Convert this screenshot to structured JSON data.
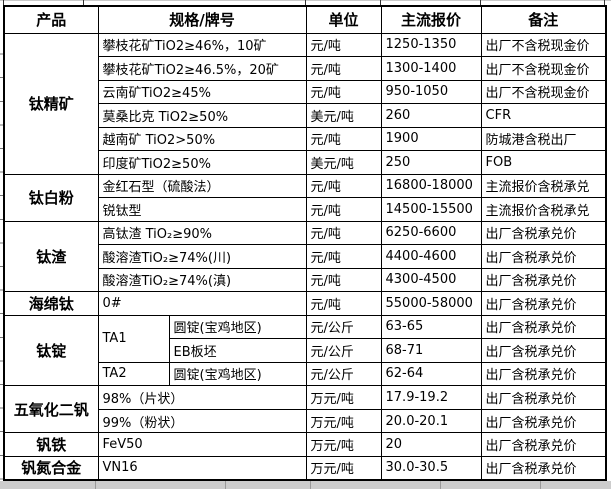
{
  "header": {
    "columns": [
      "产品",
      "规格/牌号",
      "单位",
      "主流报价",
      "备注"
    ]
  },
  "table": {
    "groups": [
      {
        "product": "钛精矿",
        "rows": [
          {
            "spec": "攀枝花矿TiO2≥46%，10矿",
            "unit": "元/吨",
            "price": "1250-1350",
            "note": "出厂不含税现金价"
          },
          {
            "spec": "攀枝花矿TiO2≥46.5%，20矿",
            "unit": "元/吨",
            "price": "1300-1400",
            "note": "出厂不含税现金价"
          },
          {
            "spec": "云南矿TiO2≥45%",
            "unit": "元/吨",
            "price": "950-1050",
            "note": "出厂不含税现金价"
          },
          {
            "spec": "莫桑比克 TiO2≥50%",
            "unit": "美元/吨",
            "price": "260",
            "note": "CFR"
          },
          {
            "spec": "越南矿 TiO2>50%",
            "unit": "元/吨",
            "price": "1900",
            "note": "防城港含税出厂"
          },
          {
            "spec": "印度矿TiO2≥50%",
            "unit": "美元/吨",
            "price": "250",
            "note": "FOB"
          }
        ]
      },
      {
        "product": "钛白粉",
        "rows": [
          {
            "spec": "金红石型（硫酸法）",
            "unit": "元/吨",
            "price": "16800-18000",
            "note": "主流报价含税承兑"
          },
          {
            "spec": "锐钛型",
            "unit": "元/吨",
            "price": "14500-15500",
            "note": "主流报价含税承兑"
          }
        ]
      },
      {
        "product": "钛渣",
        "rows": [
          {
            "spec": "高钛渣 TiO₂≥90%",
            "unit": "元/吨",
            "price": "6250-6600",
            "note": "出厂含税承兑价"
          },
          {
            "spec": "酸溶渣TiO₂≥74%(川)",
            "unit": "元/吨",
            "price": "4400-4600",
            "note": "出厂含税承兑价"
          },
          {
            "spec": "酸溶渣TiO₂≥74%(滇)",
            "unit": "元/吨",
            "price": "4300-4500",
            "note": "出厂含税承兑价"
          }
        ]
      },
      {
        "product": "海绵钛",
        "rows": [
          {
            "spec": "0#",
            "unit": "元/吨",
            "price": "55000-58000",
            "note": "出厂含税承兑价"
          }
        ]
      },
      {
        "product": "钛锭",
        "split_spec": true,
        "rows": [
          {
            "grade": "TA1",
            "grade_rowspan": 2,
            "spec": "圆锭(宝鸡地区)",
            "unit": "元/公斤",
            "price": "63-65",
            "note": "出厂含税承兑价"
          },
          {
            "spec": "EB板坯",
            "unit": "元/公斤",
            "price": "68-71",
            "note": "出厂含税承兑价"
          },
          {
            "grade": "TA2",
            "grade_rowspan": 1,
            "spec": "圆锭(宝鸡地区)",
            "unit": "元/公斤",
            "price": "62-64",
            "note": "出厂含税承兑价"
          }
        ]
      },
      {
        "product": "五氧化二钒",
        "rows": [
          {
            "spec": "98%（片状）",
            "unit": "万元/吨",
            "price": "17.9-19.2",
            "note": "出厂含税承兑价"
          },
          {
            "spec": "99%（粉状）",
            "unit": "万元/吨",
            "price": "20.0-20.1",
            "note": "出厂含税承兑价"
          }
        ]
      },
      {
        "product": "钒铁",
        "rows": [
          {
            "spec": "FeV50",
            "unit": "万元/吨",
            "price": "20",
            "note": "出厂含税承兑价"
          }
        ]
      },
      {
        "product": "钒氮合金",
        "rows": [
          {
            "spec": "VN16",
            "unit": "万元/吨",
            "price": "30.0-30.5",
            "note": "出厂含税承兑价"
          }
        ]
      }
    ]
  },
  "chart_data": {
    "type": "table",
    "title": "",
    "columns": [
      "产品",
      "规格/牌号",
      "单位",
      "主流报价",
      "备注"
    ],
    "rows": [
      [
        "钛精矿",
        "攀枝花矿TiO2≥46%，10矿",
        "元/吨",
        "1250-1350",
        "出厂不含税现金价"
      ],
      [
        "",
        "攀枝花矿TiO2≥46.5%，20矿",
        "元/吨",
        "1300-1400",
        "出厂不含税现金价"
      ],
      [
        "",
        "云南矿TiO2≥45%",
        "元/吨",
        "950-1050",
        "出厂不含税现金价"
      ],
      [
        "",
        "莫桑比克 TiO2≥50%",
        "美元/吨",
        "260",
        "CFR"
      ],
      [
        "",
        "越南矿 TiO2>50%",
        "元/吨",
        "1900",
        "防城港含税出厂"
      ],
      [
        "",
        "印度矿TiO2≥50%",
        "美元/吨",
        "250",
        "FOB"
      ],
      [
        "钛白粉",
        "金红石型（硫酸法）",
        "元/吨",
        "16800-18000",
        "主流报价含税承兑"
      ],
      [
        "",
        "锐钛型",
        "元/吨",
        "14500-15500",
        "主流报价含税承兑"
      ],
      [
        "钛渣",
        "高钛渣 TiO₂≥90%",
        "元/吨",
        "6250-6600",
        "出厂含税承兑价"
      ],
      [
        "",
        "酸溶渣TiO₂≥74%(川)",
        "元/吨",
        "4400-4600",
        "出厂含税承兑价"
      ],
      [
        "",
        "酸溶渣TiO₂≥74%(滇)",
        "元/吨",
        "4300-4500",
        "出厂含税承兑价"
      ],
      [
        "海绵钛",
        "0#",
        "元/吨",
        "55000-58000",
        "出厂含税承兑价"
      ],
      [
        "钛锭",
        "TA1 圆锭(宝鸡地区)",
        "元/公斤",
        "63-65",
        "出厂含税承兑价"
      ],
      [
        "",
        "TA1 EB板坯",
        "元/公斤",
        "68-71",
        "出厂含税承兑价"
      ],
      [
        "",
        "TA2 圆锭(宝鸡地区)",
        "元/公斤",
        "62-64",
        "出厂含税承兑价"
      ],
      [
        "五氧化二钒",
        "98%（片状）",
        "万元/吨",
        "17.9-19.2",
        "出厂含税承兑价"
      ],
      [
        "",
        "99%（粉状）",
        "万元/吨",
        "20.0-20.1",
        "出厂含税承兑价"
      ],
      [
        "钒铁",
        "FeV50",
        "万元/吨",
        "20",
        "出厂含税承兑价"
      ],
      [
        "钒氮合金",
        "VN16",
        "万元/吨",
        "30.0-30.5",
        "出厂含税承兑价"
      ]
    ]
  },
  "colors": {
    "border": "#000000",
    "cell_background": "#ffffff",
    "text": "#000000",
    "outside_strip": "#cdcdcd"
  }
}
